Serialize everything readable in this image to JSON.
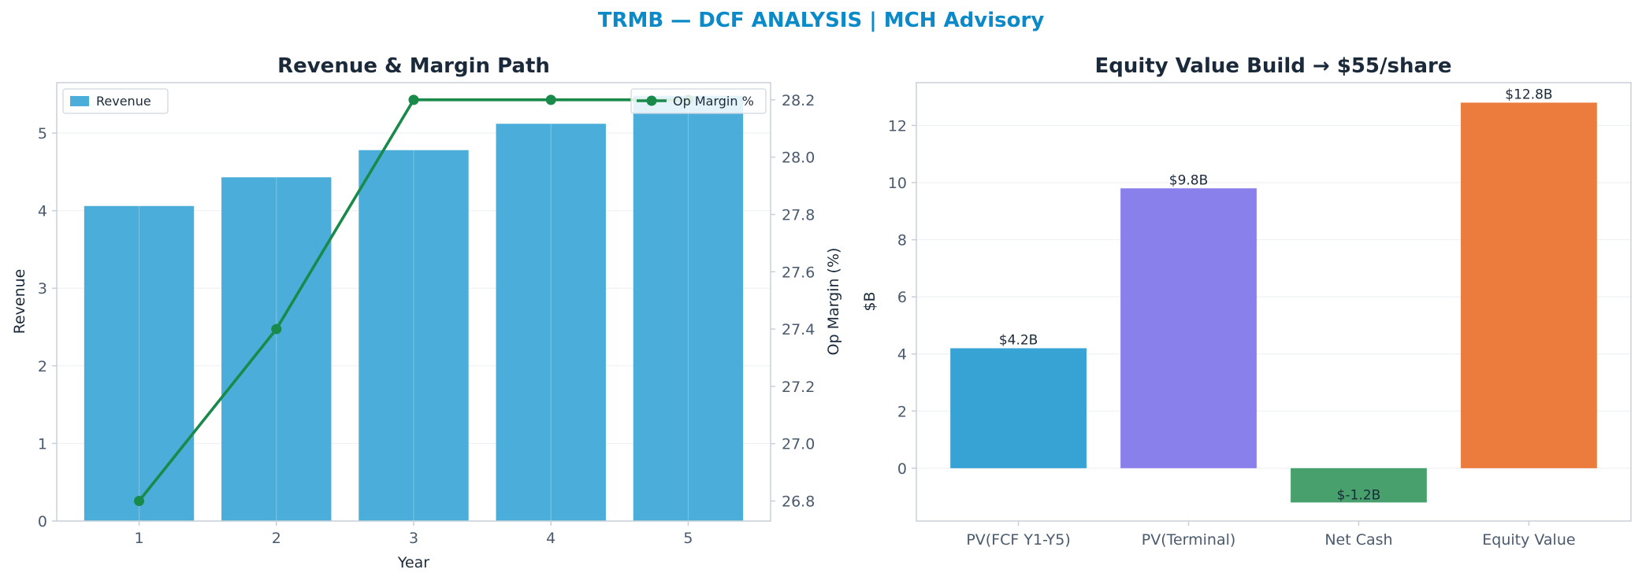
{
  "figure": {
    "suptitle": "TRMB — DCF ANALYSIS | MCH Advisory",
    "title_color": "#0a8ac8"
  },
  "chart_data": [
    {
      "type": "bar",
      "title": "Revenue & Margin Path",
      "xlabel": "Year",
      "ylabel": "Revenue",
      "y2label": "Op Margin (%)",
      "categories": [
        "1",
        "2",
        "3",
        "4",
        "5"
      ],
      "ylim": [
        0,
        5.65
      ],
      "yticks": [
        0,
        1,
        2,
        3,
        4,
        5
      ],
      "y2lim": [
        26.73,
        28.26
      ],
      "y2ticks": [
        "26.8",
        "27.0",
        "27.2",
        "27.4",
        "27.6",
        "27.8",
        "28.0",
        "28.2"
      ],
      "grid": true,
      "series": [
        {
          "name": "Revenue",
          "kind": "bar",
          "axis": "left",
          "values": [
            4.06,
            4.43,
            4.78,
            5.12,
            5.48
          ],
          "color": "#4badd9"
        },
        {
          "name": "Op Margin %",
          "kind": "line",
          "axis": "right",
          "values": [
            26.8,
            27.4,
            28.2,
            28.2,
            28.2
          ],
          "color": "#1a8a4a"
        }
      ],
      "legend": [
        {
          "label": "Revenue",
          "placement": "top-left"
        },
        {
          "label": "Op Margin %",
          "placement": "top-right"
        }
      ]
    },
    {
      "type": "bar",
      "title": "Equity Value Build → $55/share",
      "xlabel": "",
      "ylabel": "$B",
      "categories": [
        "PV(FCF Y1-Y5)",
        "PV(Terminal)",
        "Net Cash",
        "Equity Value"
      ],
      "values": [
        4.2,
        9.8,
        -1.2,
        12.8
      ],
      "labels": [
        "$4.2B",
        "$9.8B",
        "$-1.2B",
        "$12.8B"
      ],
      "colors": [
        "#36a3d4",
        "#8a80ec",
        "#48a06c",
        "#ec7b3e"
      ],
      "ylim": [
        -1.85,
        13.5
      ],
      "yticks": [
        0,
        2,
        4,
        6,
        8,
        10,
        12
      ],
      "grid": true
    }
  ]
}
